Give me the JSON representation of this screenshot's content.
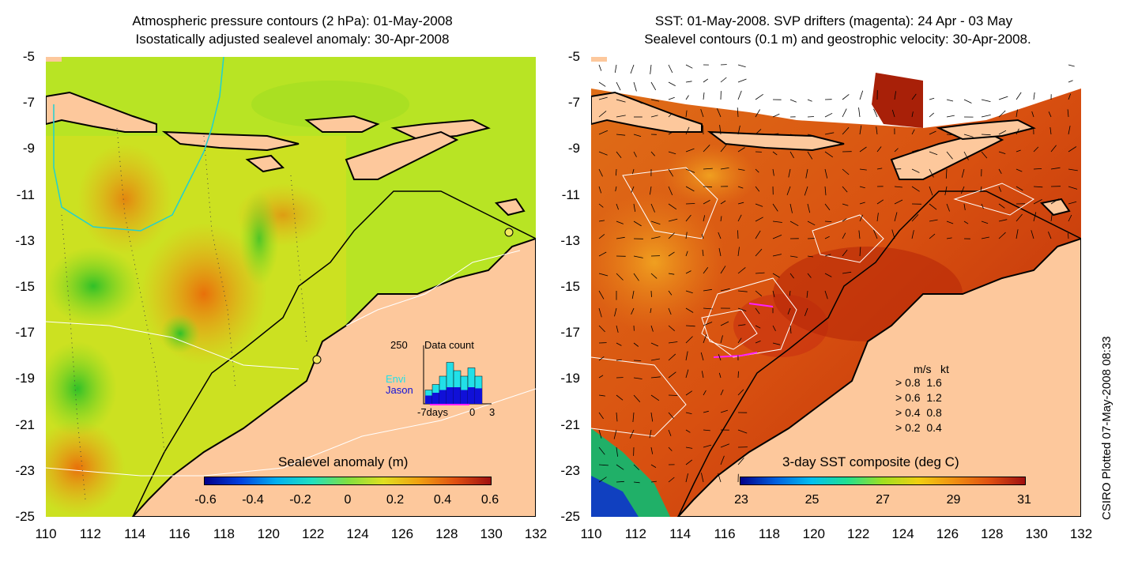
{
  "left_panel": {
    "title_line1": "Atmospheric pressure contours (2 hPa): 01-May-2008",
    "title_line2": "Isostatically adjusted sealevel anomaly: 30-Apr-2008",
    "colorbar_title": "Sealevel anomaly (m)",
    "colorbar_labels": [
      "-0.6",
      "-0.4",
      "-0.2",
      "0",
      "0.2",
      "0.4",
      "0.6"
    ],
    "inset": {
      "max_label": "250",
      "title": "Data count",
      "series1": "Envi",
      "series2": "Jason",
      "xlabel_left": "-7days",
      "xlabel_mid": "0",
      "xlabel_right": "3",
      "series1_color": "#22e0e8",
      "series2_color": "#1010d8",
      "series1_values": [
        0.25,
        0.35,
        0.5,
        0.75,
        0.6,
        0.5,
        0.65,
        0.5
      ],
      "series2_values": [
        0.15,
        0.2,
        0.25,
        0.3,
        0.3,
        0.25,
        0.3,
        0.28
      ]
    }
  },
  "right_panel": {
    "title_line1": "SST: 01-May-2008. SVP drifters (magenta): 24 Apr - 03 May",
    "title_line2": "Sealevel contours (0.1 m) and geostrophic velocity: 30-Apr-2008.",
    "colorbar_title": "3-day SST composite (deg C)",
    "colorbar_labels": [
      "23",
      "25",
      "27",
      "29",
      "31"
    ],
    "velocity_legend": {
      "header_ms": "m/s",
      "header_kt": "kt",
      "rows": [
        {
          "ms": "0.8",
          "kt": "1.6"
        },
        {
          "ms": "0.6",
          "kt": "1.2"
        },
        {
          "ms": "0.4",
          "kt": "0.8"
        },
        {
          "ms": "0.2",
          "kt": "0.4"
        }
      ]
    }
  },
  "axes": {
    "y_ticks": [
      "-5",
      "-7",
      "-9",
      "-11",
      "-13",
      "-15",
      "-17",
      "-19",
      "-21",
      "-23",
      "-25"
    ],
    "x_ticks": [
      "110",
      "112",
      "114",
      "116",
      "118",
      "120",
      "122",
      "124",
      "126",
      "128",
      "130",
      "132"
    ]
  },
  "stamp": "CSIRO Plotted 07-May-2008 08:33",
  "colors": {
    "land": "#fdc89c",
    "ocean_mid": "#c8e820",
    "anomaly_high": "#f09010",
    "sst_warm": "#c03008",
    "sst_mid": "#e06818",
    "pressure_contour": "#20d0d0"
  }
}
